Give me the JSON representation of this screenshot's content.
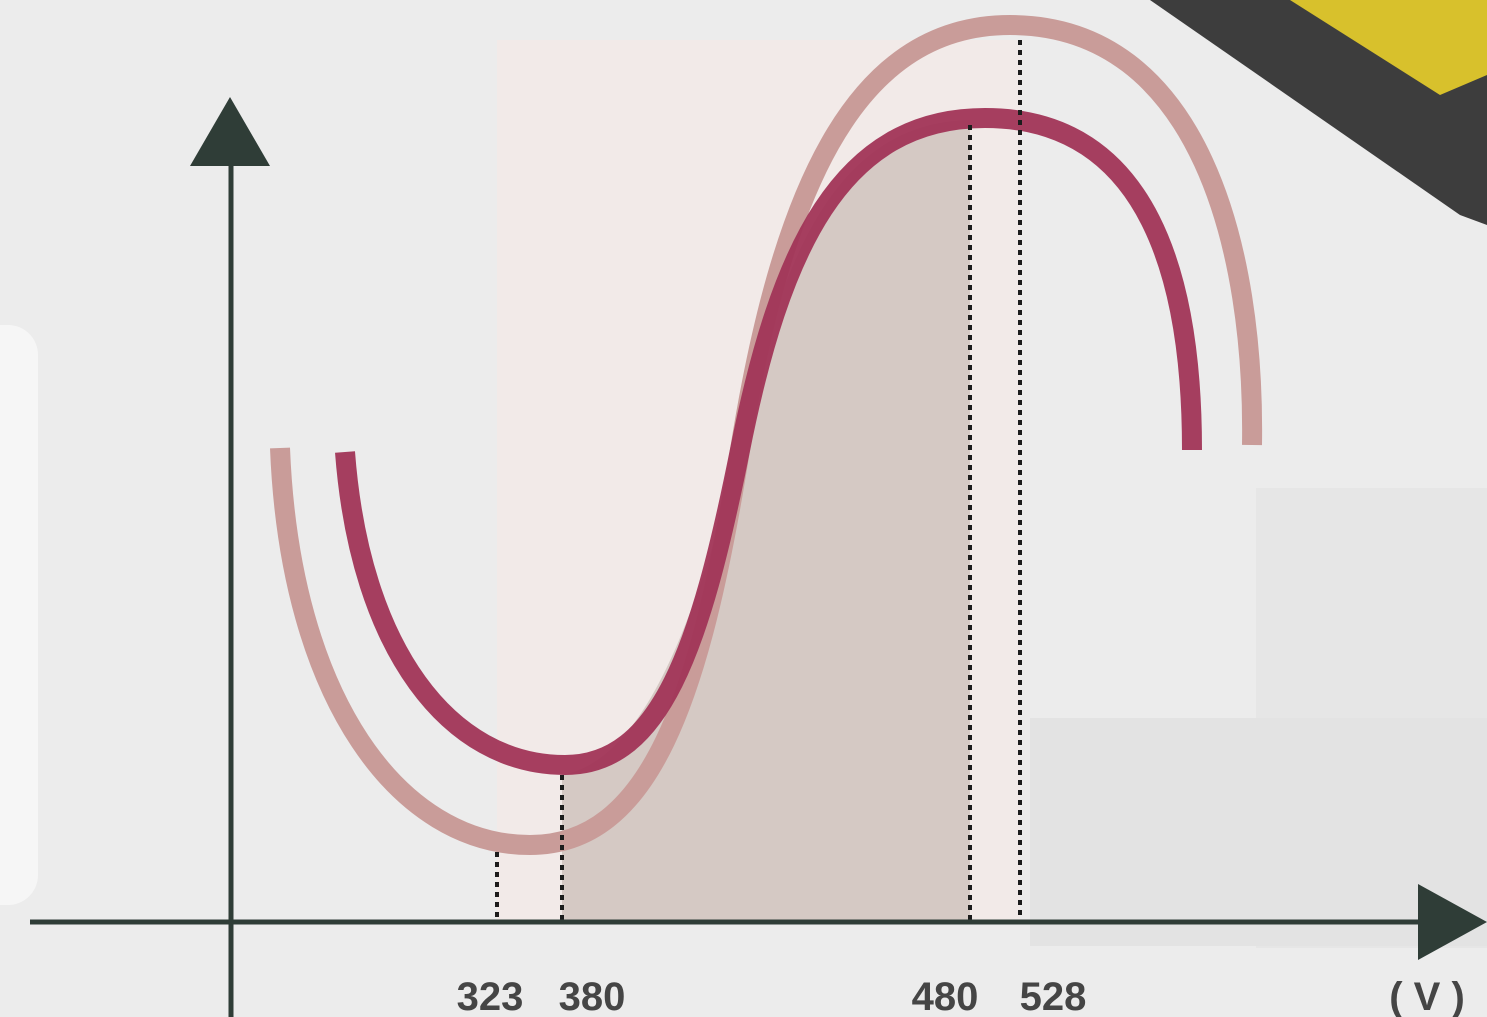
{
  "voltage_labels": [
    323,
    380,
    480,
    528
  ],
  "axis_unit": "( V )"
}
